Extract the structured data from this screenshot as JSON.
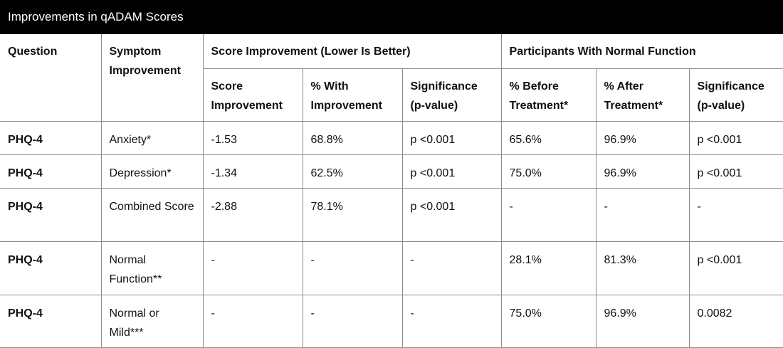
{
  "title": "Improvements in qADAM Scores",
  "headers": {
    "question": "Question",
    "symptom": "Symptom Improvement",
    "group_score": "Score Improvement (Lower Is Better)",
    "group_normal": "Participants With Normal Function",
    "sub": [
      "Score Improvement",
      "% With Improvement",
      "Significance (p-value)",
      "% Before Treatment*",
      "% After Treatment*",
      "Significance (p-value)"
    ]
  },
  "rows": [
    {
      "question": "PHQ-4",
      "symptom": "Anxiety*",
      "cells": [
        "-1.53",
        "68.8%",
        "p <0.001",
        "65.6%",
        "96.9%",
        "p <0.001"
      ]
    },
    {
      "question": "PHQ-4",
      "symptom": "Depression*",
      "cells": [
        "-1.34",
        "62.5%",
        "p <0.001",
        "75.0%",
        "96.9%",
        "p <0.001"
      ]
    },
    {
      "question": "PHQ-4",
      "symptom": "Combined Score",
      "cells": [
        "-2.88",
        "78.1%",
        "p <0.001",
        "-",
        "-",
        "-"
      ]
    },
    {
      "question": "PHQ-4",
      "symptom": "Normal Function**",
      "cells": [
        "-",
        "-",
        "-",
        "28.1%",
        "81.3%",
        "p <0.001"
      ]
    },
    {
      "question": "PHQ-4",
      "symptom": "Normal or Mild***",
      "cells": [
        "-",
        "-",
        "-",
        "75.0%",
        "96.9%",
        "0.0082"
      ]
    }
  ]
}
